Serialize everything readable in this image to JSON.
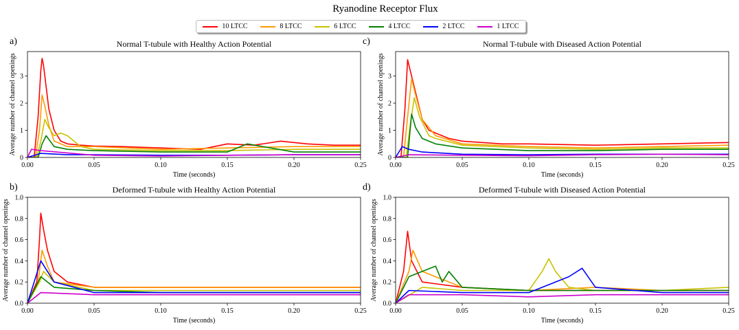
{
  "figure_title": "Ryanodine Receptor Flux",
  "legend": [
    {
      "label": "10 LTCC",
      "color": "#ff0000"
    },
    {
      "label": "8 LTCC",
      "color": "#ff9900"
    },
    {
      "label": "6 LTCC",
      "color": "#c7c200"
    },
    {
      "label": "4 LTCC",
      "color": "#008000"
    },
    {
      "label": "2 LTCC",
      "color": "#0000ff"
    },
    {
      "label": "1 LTCC",
      "color": "#cc00cc"
    }
  ],
  "chart_data": [
    {
      "panel": "a)",
      "type": "line",
      "title": "Normal T-tubule with Healthy Action Potential",
      "xlabel": "Time (seconds)",
      "ylabel": "Average number of channel openings",
      "xlim": [
        0,
        0.25
      ],
      "ylim": [
        0,
        3.9
      ],
      "xticks": [
        "0.00",
        "0.05",
        "0.10",
        "0.15",
        "0.20",
        "0.25"
      ],
      "xtick_values": [
        0,
        0.05,
        0.1,
        0.15,
        0.2,
        0.25
      ],
      "yticks": [
        "0",
        "1",
        "2",
        "3"
      ],
      "ytick_values": [
        0,
        1,
        2,
        3
      ],
      "series": [
        {
          "name": "10 LTCC",
          "color": "#ff0000",
          "x": [
            0,
            0.005,
            0.008,
            0.01,
            0.011,
            0.012,
            0.014,
            0.016,
            0.02,
            0.025,
            0.03,
            0.04,
            0.05,
            0.07,
            0.1,
            0.13,
            0.15,
            0.17,
            0.19,
            0.21,
            0.23,
            0.25
          ],
          "y": [
            0,
            0,
            1.5,
            3.2,
            3.65,
            3.4,
            2.6,
            1.8,
            1.0,
            0.6,
            0.5,
            0.45,
            0.42,
            0.4,
            0.35,
            0.3,
            0.5,
            0.45,
            0.6,
            0.5,
            0.45,
            0.45
          ]
        },
        {
          "name": "8 LTCC",
          "color": "#ff9900",
          "x": [
            0,
            0.006,
            0.009,
            0.011,
            0.013,
            0.016,
            0.02,
            0.03,
            0.05,
            0.1,
            0.15,
            0.2,
            0.25
          ],
          "y": [
            0,
            0,
            1.0,
            2.3,
            1.9,
            1.2,
            0.6,
            0.4,
            0.4,
            0.3,
            0.35,
            0.4,
            0.4
          ]
        },
        {
          "name": "6 LTCC",
          "color": "#c7c200",
          "x": [
            0,
            0.007,
            0.01,
            0.013,
            0.016,
            0.02,
            0.025,
            0.03,
            0.04,
            0.05,
            0.1,
            0.15,
            0.2,
            0.25
          ],
          "y": [
            0,
            0,
            0.6,
            1.4,
            1.1,
            0.8,
            0.9,
            0.8,
            0.4,
            0.3,
            0.25,
            0.25,
            0.3,
            0.3
          ]
        },
        {
          "name": "4 LTCC",
          "color": "#008000",
          "x": [
            0,
            0.008,
            0.011,
            0.014,
            0.02,
            0.03,
            0.05,
            0.1,
            0.15,
            0.165,
            0.2,
            0.25
          ],
          "y": [
            0,
            0,
            0.5,
            0.8,
            0.4,
            0.3,
            0.25,
            0.2,
            0.2,
            0.5,
            0.2,
            0.2
          ]
        },
        {
          "name": "2 LTCC",
          "color": "#0000ff",
          "x": [
            0,
            0.01,
            0.03,
            0.05,
            0.1,
            0.15,
            0.2,
            0.25
          ],
          "y": [
            0,
            0.15,
            0.1,
            0.1,
            0.08,
            0.08,
            0.1,
            0.1
          ]
        },
        {
          "name": "1 LTCC",
          "color": "#cc00cc",
          "x": [
            0,
            0.003,
            0.01,
            0.05,
            0.1,
            0.15,
            0.2,
            0.25
          ],
          "y": [
            0,
            0.3,
            0.25,
            0.08,
            0.05,
            0.08,
            0.1,
            0.1
          ]
        }
      ]
    },
    {
      "panel": "c)",
      "type": "line",
      "title": "Normal T-tubule with Diseased Action Potential",
      "xlabel": "Time (seconds)",
      "ylabel": "Average number of channel openings",
      "xlim": [
        0,
        0.25
      ],
      "ylim": [
        0,
        3.9
      ],
      "xticks": [
        "0.00",
        "0.05",
        "0.10",
        "0.15",
        "0.20",
        "0.25"
      ],
      "xtick_values": [
        0,
        0.05,
        0.1,
        0.15,
        0.2,
        0.25
      ],
      "yticks": [
        "0",
        "1",
        "2",
        "3"
      ],
      "ytick_values": [
        0,
        1,
        2,
        3
      ],
      "series": [
        {
          "name": "10 LTCC",
          "color": "#ff0000",
          "x": [
            0,
            0.004,
            0.007,
            0.009,
            0.011,
            0.013,
            0.016,
            0.02,
            0.025,
            0.03,
            0.04,
            0.05,
            0.08,
            0.1,
            0.15,
            0.2,
            0.25
          ],
          "y": [
            0,
            0,
            1.8,
            3.6,
            3.2,
            2.8,
            2.2,
            1.4,
            1.0,
            0.9,
            0.7,
            0.6,
            0.5,
            0.5,
            0.45,
            0.5,
            0.55
          ]
        },
        {
          "name": "8 LTCC",
          "color": "#ff9900",
          "x": [
            0,
            0.006,
            0.009,
            0.012,
            0.015,
            0.02,
            0.03,
            0.05,
            0.1,
            0.15,
            0.2,
            0.25
          ],
          "y": [
            0,
            0,
            1.5,
            2.9,
            2.3,
            1.4,
            0.8,
            0.5,
            0.4,
            0.35,
            0.4,
            0.45
          ]
        },
        {
          "name": "6 LTCC",
          "color": "#c7c200",
          "x": [
            0,
            0.008,
            0.011,
            0.014,
            0.018,
            0.025,
            0.03,
            0.05,
            0.1,
            0.15,
            0.2,
            0.25
          ],
          "y": [
            0,
            0,
            1.2,
            2.2,
            1.5,
            0.8,
            0.7,
            0.45,
            0.35,
            0.3,
            0.35,
            0.35
          ]
        },
        {
          "name": "4 LTCC",
          "color": "#008000",
          "x": [
            0,
            0.009,
            0.012,
            0.015,
            0.02,
            0.03,
            0.05,
            0.1,
            0.15,
            0.2,
            0.25
          ],
          "y": [
            0,
            0,
            1.6,
            1.1,
            0.7,
            0.5,
            0.35,
            0.25,
            0.25,
            0.3,
            0.3
          ]
        },
        {
          "name": "2 LTCC",
          "color": "#0000ff",
          "x": [
            0,
            0.005,
            0.01,
            0.02,
            0.05,
            0.1,
            0.15,
            0.2,
            0.25
          ],
          "y": [
            0,
            0.4,
            0.3,
            0.2,
            0.12,
            0.1,
            0.12,
            0.12,
            0.12
          ]
        },
        {
          "name": "1 LTCC",
          "color": "#cc00cc",
          "x": [
            0,
            0.01,
            0.05,
            0.1,
            0.15,
            0.2,
            0.25
          ],
          "y": [
            0,
            0.1,
            0.08,
            0.06,
            0.1,
            0.12,
            0.1
          ]
        }
      ]
    },
    {
      "panel": "b)",
      "type": "line",
      "title": "Deformed T-tubule with Healthy Action Potential",
      "xlabel": "Time (seconds)",
      "ylabel": "Average number of channel openings",
      "xlim": [
        0,
        0.25
      ],
      "ylim": [
        0,
        1.0
      ],
      "xticks": [
        "0.00",
        "0.05",
        "0.10",
        "0.15",
        "0.20",
        "0.25"
      ],
      "xtick_values": [
        0,
        0.05,
        0.1,
        0.15,
        0.2,
        0.25
      ],
      "yticks": [
        "0.0",
        "0.2",
        "0.4",
        "0.6",
        "0.8",
        "1.0"
      ],
      "ytick_values": [
        0,
        0.2,
        0.4,
        0.6,
        0.8,
        1.0
      ],
      "series": [
        {
          "name": "10 LTCC",
          "color": "#ff0000",
          "x": [
            0,
            0.007,
            0.009,
            0.01,
            0.012,
            0.015,
            0.02,
            0.03,
            0.05,
            0.1,
            0.15,
            0.2,
            0.25
          ],
          "y": [
            0,
            0.2,
            0.6,
            0.85,
            0.7,
            0.5,
            0.3,
            0.2,
            0.15,
            0.15,
            0.15,
            0.15,
            0.15
          ]
        },
        {
          "name": "8 LTCC",
          "color": "#ff9900",
          "x": [
            0,
            0.008,
            0.011,
            0.015,
            0.02,
            0.05,
            0.1,
            0.15,
            0.2,
            0.25
          ],
          "y": [
            0,
            0.2,
            0.5,
            0.35,
            0.2,
            0.15,
            0.15,
            0.15,
            0.15,
            0.15
          ]
        },
        {
          "name": "6 LTCC",
          "color": "#c7c200",
          "x": [
            0,
            0.009,
            0.012,
            0.02,
            0.05,
            0.1,
            0.15,
            0.2,
            0.25
          ],
          "y": [
            0,
            0.2,
            0.3,
            0.2,
            0.12,
            0.12,
            0.12,
            0.12,
            0.12
          ]
        },
        {
          "name": "4 LTCC",
          "color": "#008000",
          "x": [
            0,
            0.01,
            0.02,
            0.05,
            0.1,
            0.15,
            0.2,
            0.25
          ],
          "y": [
            0,
            0.25,
            0.15,
            0.12,
            0.1,
            0.1,
            0.1,
            0.1
          ]
        },
        {
          "name": "2 LTCC",
          "color": "#0000ff",
          "x": [
            0,
            0.01,
            0.02,
            0.05,
            0.1,
            0.15,
            0.2,
            0.25
          ],
          "y": [
            0,
            0.4,
            0.2,
            0.1,
            0.1,
            0.1,
            0.1,
            0.1
          ]
        },
        {
          "name": "1 LTCC",
          "color": "#cc00cc",
          "x": [
            0,
            0.01,
            0.05,
            0.1,
            0.15,
            0.2,
            0.25
          ],
          "y": [
            0,
            0.1,
            0.08,
            0.08,
            0.08,
            0.08,
            0.08
          ]
        }
      ]
    },
    {
      "panel": "d)",
      "type": "line",
      "title": "Deformed T-tubule with Diseased Action Potential",
      "xlabel": "Time (seconds)",
      "ylabel": "Average number of channel openings",
      "xlim": [
        0,
        0.25
      ],
      "ylim": [
        0,
        1.0
      ],
      "xticks": [
        "0.00",
        "0.05",
        "0.10",
        "0.15",
        "0.20",
        "0.25"
      ],
      "xtick_values": [
        0,
        0.05,
        0.1,
        0.15,
        0.2,
        0.25
      ],
      "yticks": [
        "0.0",
        "0.2",
        "0.4",
        "0.6",
        "0.8",
        "1.0"
      ],
      "ytick_values": [
        0,
        0.2,
        0.4,
        0.6,
        0.8,
        1.0
      ],
      "series": [
        {
          "name": "10 LTCC",
          "color": "#ff0000",
          "x": [
            0,
            0.006,
            0.009,
            0.012,
            0.02,
            0.05,
            0.1,
            0.15,
            0.2,
            0.25
          ],
          "y": [
            0,
            0.3,
            0.68,
            0.4,
            0.2,
            0.15,
            0.12,
            0.12,
            0.12,
            0.12
          ]
        },
        {
          "name": "8 LTCC",
          "color": "#ff9900",
          "x": [
            0,
            0.01,
            0.013,
            0.02,
            0.05,
            0.1,
            0.15,
            0.2,
            0.25
          ],
          "y": [
            0,
            0.3,
            0.5,
            0.3,
            0.15,
            0.12,
            0.15,
            0.12,
            0.12
          ]
        },
        {
          "name": "6 LTCC",
          "color": "#c7c200",
          "x": [
            0,
            0.02,
            0.05,
            0.1,
            0.11,
            0.115,
            0.12,
            0.13,
            0.15,
            0.2,
            0.25
          ],
          "y": [
            0,
            0.15,
            0.12,
            0.12,
            0.3,
            0.42,
            0.3,
            0.15,
            0.12,
            0.12,
            0.15
          ]
        },
        {
          "name": "4 LTCC",
          "color": "#008000",
          "x": [
            0,
            0.01,
            0.02,
            0.03,
            0.035,
            0.04,
            0.05,
            0.1,
            0.15,
            0.2,
            0.25
          ],
          "y": [
            0,
            0.25,
            0.3,
            0.35,
            0.2,
            0.3,
            0.15,
            0.12,
            0.12,
            0.12,
            0.12
          ]
        },
        {
          "name": "2 LTCC",
          "color": "#0000ff",
          "x": [
            0,
            0.01,
            0.05,
            0.1,
            0.13,
            0.14,
            0.15,
            0.2,
            0.25
          ],
          "y": [
            0,
            0.12,
            0.1,
            0.1,
            0.25,
            0.33,
            0.15,
            0.1,
            0.1
          ]
        },
        {
          "name": "1 LTCC",
          "color": "#cc00cc",
          "x": [
            0,
            0.01,
            0.05,
            0.1,
            0.15,
            0.2,
            0.25
          ],
          "y": [
            0,
            0.08,
            0.08,
            0.06,
            0.08,
            0.08,
            0.08
          ]
        }
      ]
    }
  ]
}
